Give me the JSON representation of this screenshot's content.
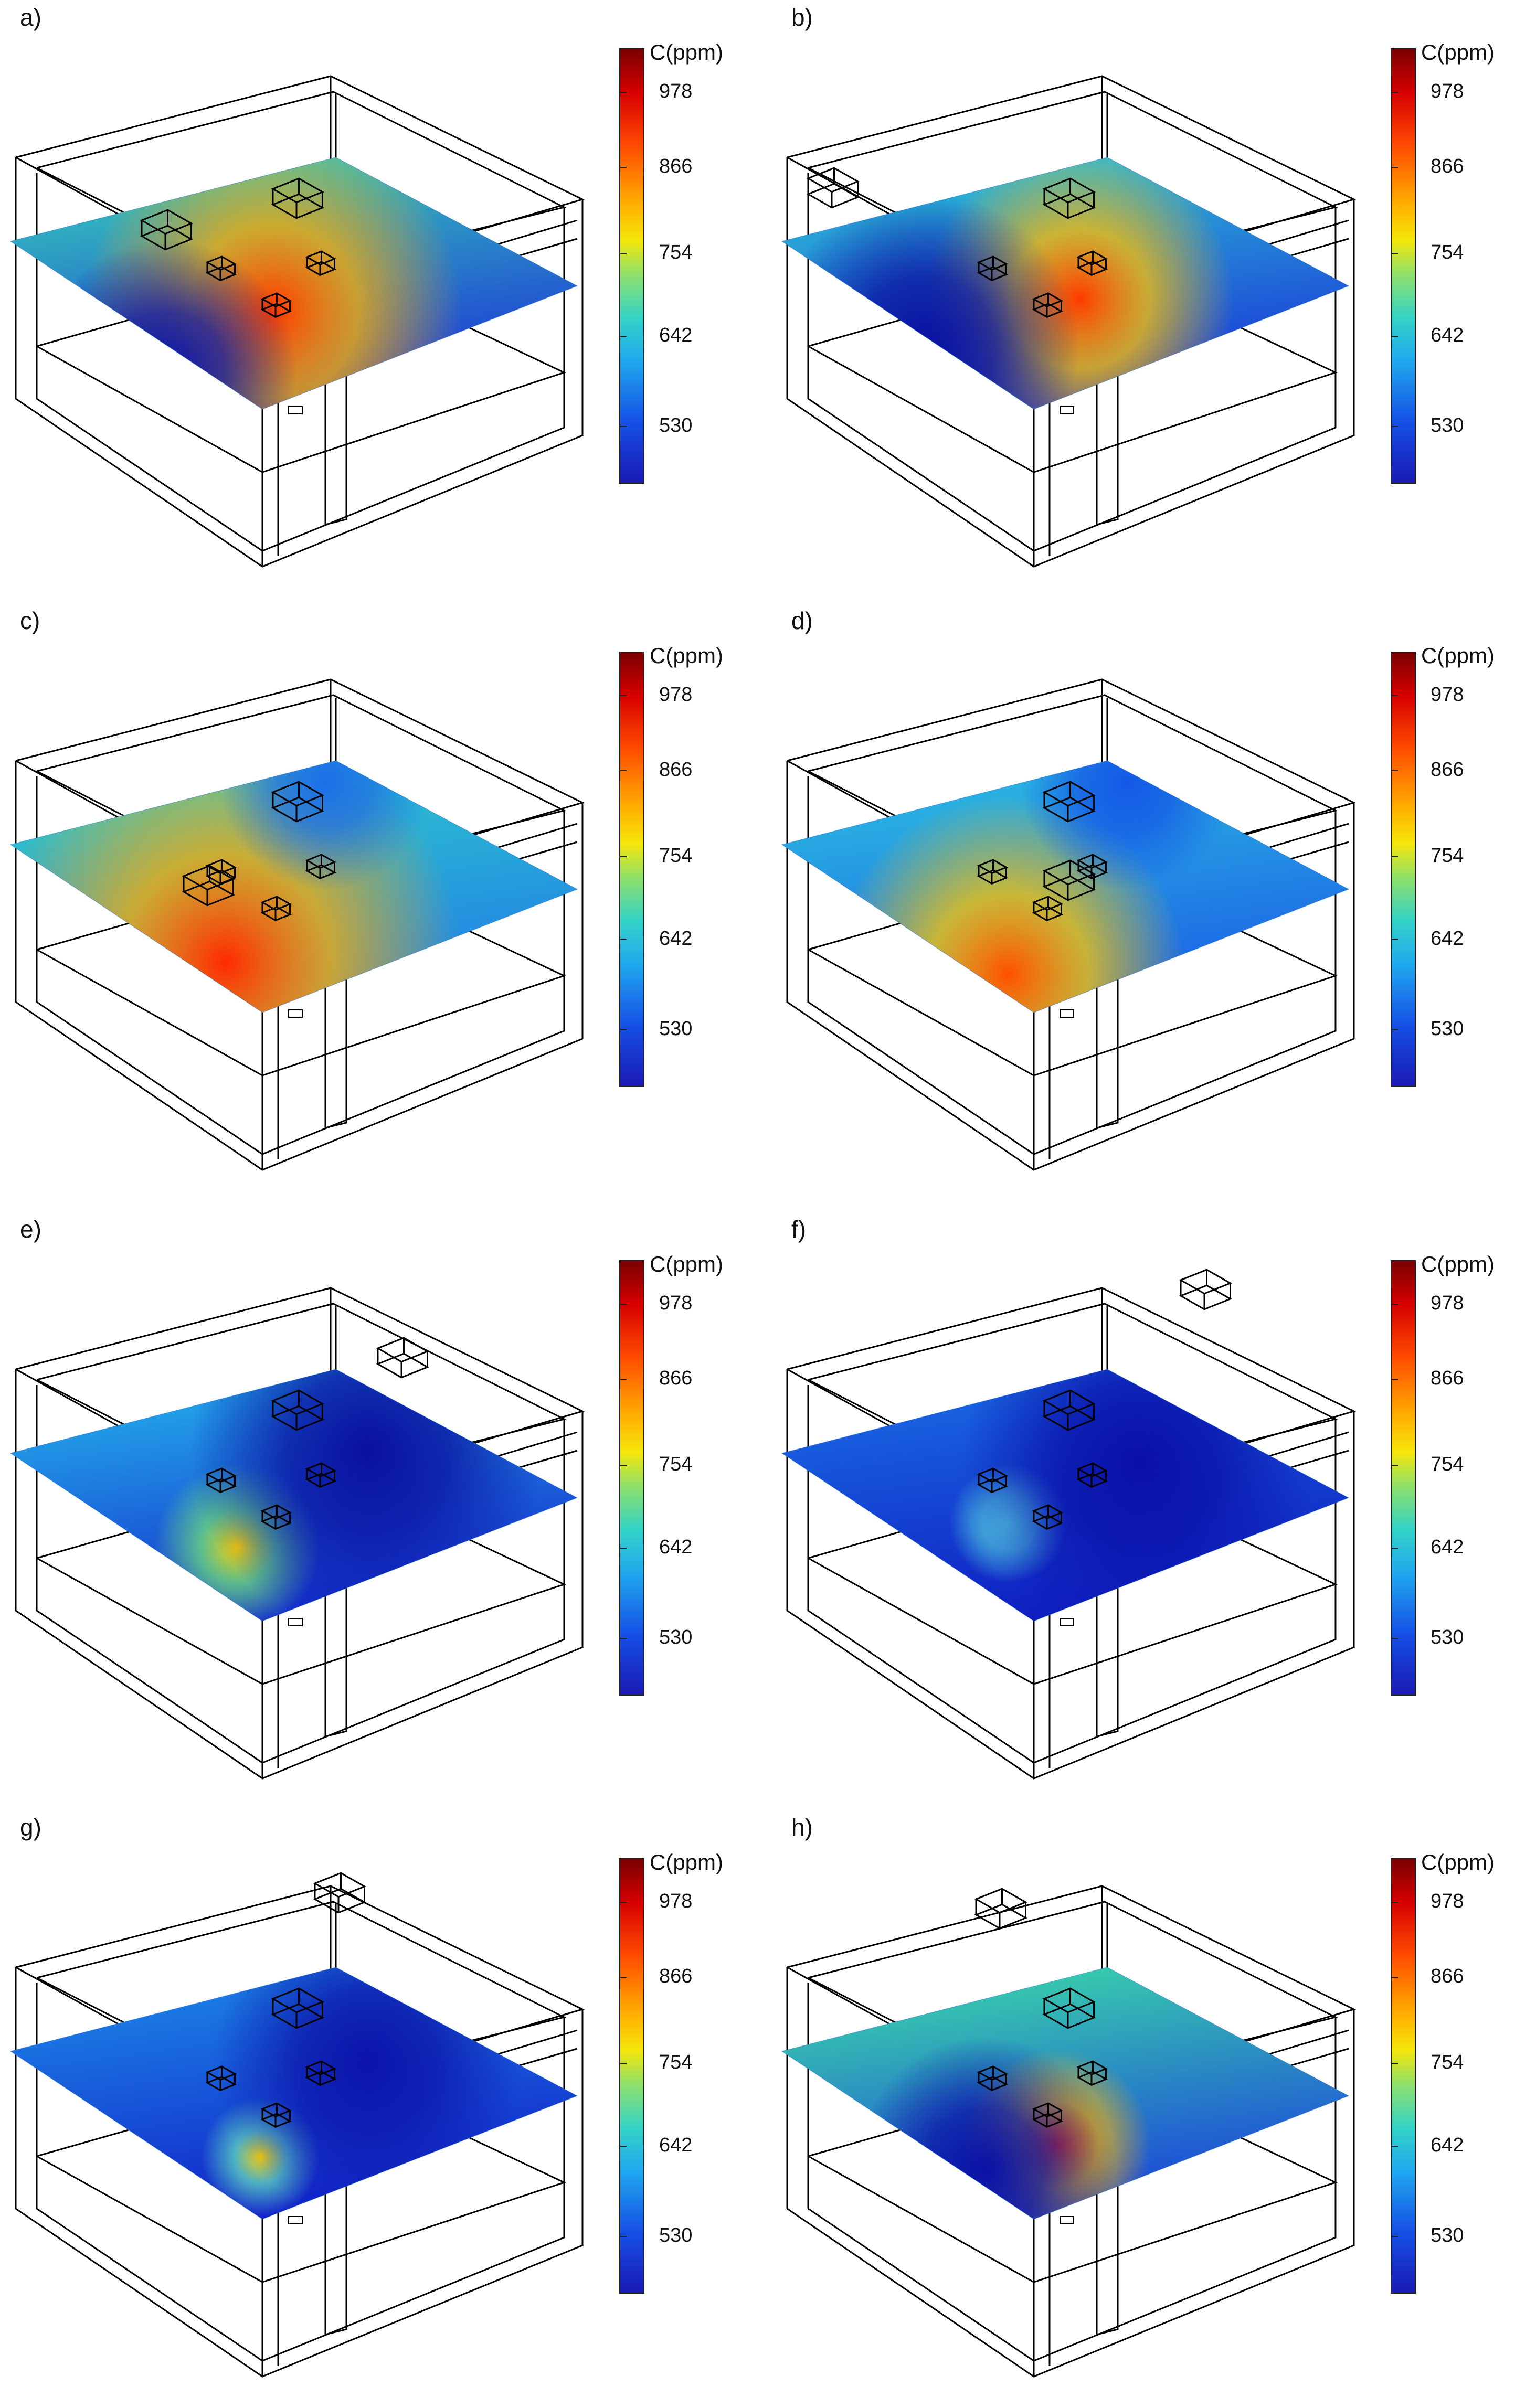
{
  "colorbar": {
    "title": "C(ppm)",
    "ticks": [
      "978",
      "866",
      "754",
      "642",
      "530"
    ]
  },
  "panels": [
    {
      "label": "a)",
      "field": "a"
    },
    {
      "label": "b)",
      "field": "b"
    },
    {
      "label": "c)",
      "field": "c"
    },
    {
      "label": "d)",
      "field": "d"
    },
    {
      "label": "e)",
      "field": "e"
    },
    {
      "label": "f)",
      "field": "f"
    },
    {
      "label": "g)",
      "field": "g"
    },
    {
      "label": "h)",
      "field": "h"
    }
  ]
}
